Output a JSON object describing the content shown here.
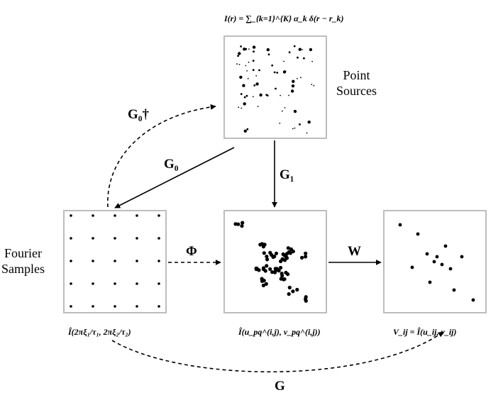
{
  "top_equation": "I(r) = ∑_{k=1}^{K} α_k δ(r − r_k)",
  "point_sources_label": "Point\nSources",
  "fourier_samples_label": "Fourier\nSamples",
  "operators": {
    "G0_dagger": "G₀†",
    "G0": "G₀",
    "G1": "G₁",
    "Phi": "Φ",
    "W": "W",
    "G": "G"
  },
  "captions": {
    "fourier_grid": "Î(2πξ₁/τ₁, 2πξ₂/τ₂)",
    "resampled": "Î(u_pq^(i,j), v_pq^(i,j))",
    "visibilities": "V_ij = Î(u_ij, v_ij)"
  },
  "colors": {
    "panel_border": "#bdbdbd",
    "ink": "#000000"
  }
}
